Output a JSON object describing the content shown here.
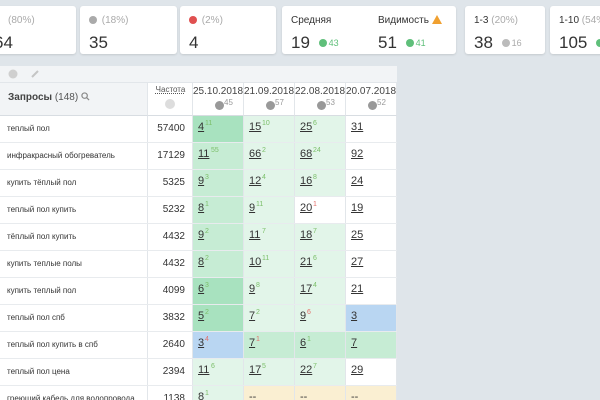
{
  "summary_cards": [
    {
      "prefix": "",
      "pct": "(80%)",
      "dot": "",
      "value": "64",
      "delta": ""
    },
    {
      "prefix": "",
      "pct": "(18%)",
      "dot": "#aaaaaa",
      "value": "35",
      "delta": ""
    },
    {
      "prefix": "",
      "pct": "(2%)",
      "dot": "#e05050",
      "value": "4",
      "delta": ""
    }
  ],
  "avg_card": {
    "label": "Средняя",
    "value": "19",
    "delta": "43"
  },
  "visibility_card": {
    "label": "Видимость",
    "value": "51",
    "delta": "41"
  },
  "top3_card": {
    "label": "1-3",
    "pct": "(20%)",
    "value": "38",
    "delta": "16"
  },
  "top10_card": {
    "label": "1-10",
    "pct": "(54%)",
    "value": "105",
    "delta": ""
  },
  "table": {
    "queries_header": "Запросы",
    "queries_count": "(148)",
    "freq_header": "Частота",
    "dates": [
      {
        "date": "25.10.2018",
        "count": "45"
      },
      {
        "date": "21.09.2018",
        "count": "57"
      },
      {
        "date": "22.08.2018",
        "count": "53"
      },
      {
        "date": "20.07.2018",
        "count": "52"
      }
    ],
    "rows": [
      {
        "query": "теплый пол",
        "freq": "57400",
        "cells": [
          {
            "v": "4",
            "s": "11",
            "dir": "up"
          },
          {
            "v": "15",
            "s": "10",
            "dir": "up"
          },
          {
            "v": "25",
            "s": "6",
            "dir": "up"
          },
          {
            "v": "31",
            "s": "",
            "dir": ""
          }
        ]
      },
      {
        "query": "инфракрасный обогреватель",
        "freq": "17129",
        "cells": [
          {
            "v": "11",
            "s": "55",
            "dir": "up"
          },
          {
            "v": "66",
            "s": "2",
            "dir": "up"
          },
          {
            "v": "68",
            "s": "24",
            "dir": "up"
          },
          {
            "v": "92",
            "s": "",
            "dir": ""
          }
        ]
      },
      {
        "query": "купить тёплый пол",
        "freq": "5325",
        "cells": [
          {
            "v": "9",
            "s": "3",
            "dir": "up"
          },
          {
            "v": "12",
            "s": "4",
            "dir": "up"
          },
          {
            "v": "16",
            "s": "8",
            "dir": "up"
          },
          {
            "v": "24",
            "s": "",
            "dir": ""
          }
        ]
      },
      {
        "query": "теплый пол купить",
        "freq": "5232",
        "cells": [
          {
            "v": "8",
            "s": "1",
            "dir": "up"
          },
          {
            "v": "9",
            "s": "11",
            "dir": "up"
          },
          {
            "v": "20",
            "s": "1",
            "dir": "dn"
          },
          {
            "v": "19",
            "s": "",
            "dir": ""
          }
        ]
      },
      {
        "query": "тёплый пол купить",
        "freq": "4432",
        "cells": [
          {
            "v": "9",
            "s": "2",
            "dir": "up"
          },
          {
            "v": "11",
            "s": "7",
            "dir": "up"
          },
          {
            "v": "18",
            "s": "7",
            "dir": "up"
          },
          {
            "v": "25",
            "s": "",
            "dir": ""
          }
        ]
      },
      {
        "query": "купить теплые полы",
        "freq": "4432",
        "cells": [
          {
            "v": "8",
            "s": "2",
            "dir": "up"
          },
          {
            "v": "10",
            "s": "11",
            "dir": "up"
          },
          {
            "v": "21",
            "s": "6",
            "dir": "up"
          },
          {
            "v": "27",
            "s": "",
            "dir": ""
          }
        ]
      },
      {
        "query": "купить теплый пол",
        "freq": "4099",
        "cells": [
          {
            "v": "6",
            "s": "3",
            "dir": "up"
          },
          {
            "v": "9",
            "s": "8",
            "dir": "up"
          },
          {
            "v": "17",
            "s": "4",
            "dir": "up"
          },
          {
            "v": "21",
            "s": "",
            "dir": ""
          }
        ]
      },
      {
        "query": "теплый пол спб",
        "freq": "3832",
        "cells": [
          {
            "v": "5",
            "s": "2",
            "dir": "up"
          },
          {
            "v": "7",
            "s": "2",
            "dir": "up"
          },
          {
            "v": "9",
            "s": "6",
            "dir": "dn"
          },
          {
            "v": "3",
            "s": "",
            "dir": ""
          }
        ]
      },
      {
        "query": "теплый пол купить в спб",
        "freq": "2640",
        "cells": [
          {
            "v": "3",
            "s": "4",
            "dir": "dn"
          },
          {
            "v": "7",
            "s": "1",
            "dir": "dn"
          },
          {
            "v": "6",
            "s": "1",
            "dir": "up"
          },
          {
            "v": "7",
            "s": "",
            "dir": ""
          }
        ]
      },
      {
        "query": "теплый пол цена",
        "freq": "2394",
        "cells": [
          {
            "v": "11",
            "s": "6",
            "dir": "up"
          },
          {
            "v": "17",
            "s": "5",
            "dir": "up"
          },
          {
            "v": "22",
            "s": "7",
            "dir": "up"
          },
          {
            "v": "29",
            "s": "",
            "dir": ""
          }
        ]
      },
      {
        "query": "греющий кабель для водопровода",
        "freq": "1138",
        "cells": [
          {
            "v": "8",
            "s": "1",
            "dir": "up"
          },
          {
            "v": "--",
            "s": "",
            "dir": ""
          },
          {
            "v": "--",
            "s": "",
            "dir": ""
          },
          {
            "v": "--",
            "s": "",
            "dir": ""
          }
        ]
      }
    ]
  },
  "colors": {
    "green_strong": "#a8e2bf",
    "green_mid": "#c6ecd4",
    "green_light": "#e2f5e9",
    "blue": "#b9d6f2",
    "yellow": "#faefd2",
    "white": "#ffffff",
    "delta_green": "#5fbf7a"
  },
  "cell_colors": [
    [
      "green_strong",
      "green_light",
      "green_light",
      "white"
    ],
    [
      "green_mid",
      "green_light",
      "green_light",
      "white"
    ],
    [
      "green_mid",
      "green_light",
      "green_light",
      "white"
    ],
    [
      "green_mid",
      "green_light",
      "white",
      "white"
    ],
    [
      "green_mid",
      "green_light",
      "green_light",
      "white"
    ],
    [
      "green_mid",
      "green_light",
      "green_light",
      "white"
    ],
    [
      "green_strong",
      "green_light",
      "green_light",
      "white"
    ],
    [
      "green_strong",
      "green_light",
      "green_light",
      "blue"
    ],
    [
      "blue",
      "green_mid",
      "green_mid",
      "green_mid"
    ],
    [
      "green_light",
      "green_light",
      "green_light",
      "white"
    ],
    [
      "green_light",
      "yellow",
      "yellow",
      "yellow"
    ]
  ],
  "icons": {
    "toolbar_1": "eye-icon",
    "toolbar_2": "link-icon",
    "search": "search-icon",
    "warning": "warning-icon"
  }
}
